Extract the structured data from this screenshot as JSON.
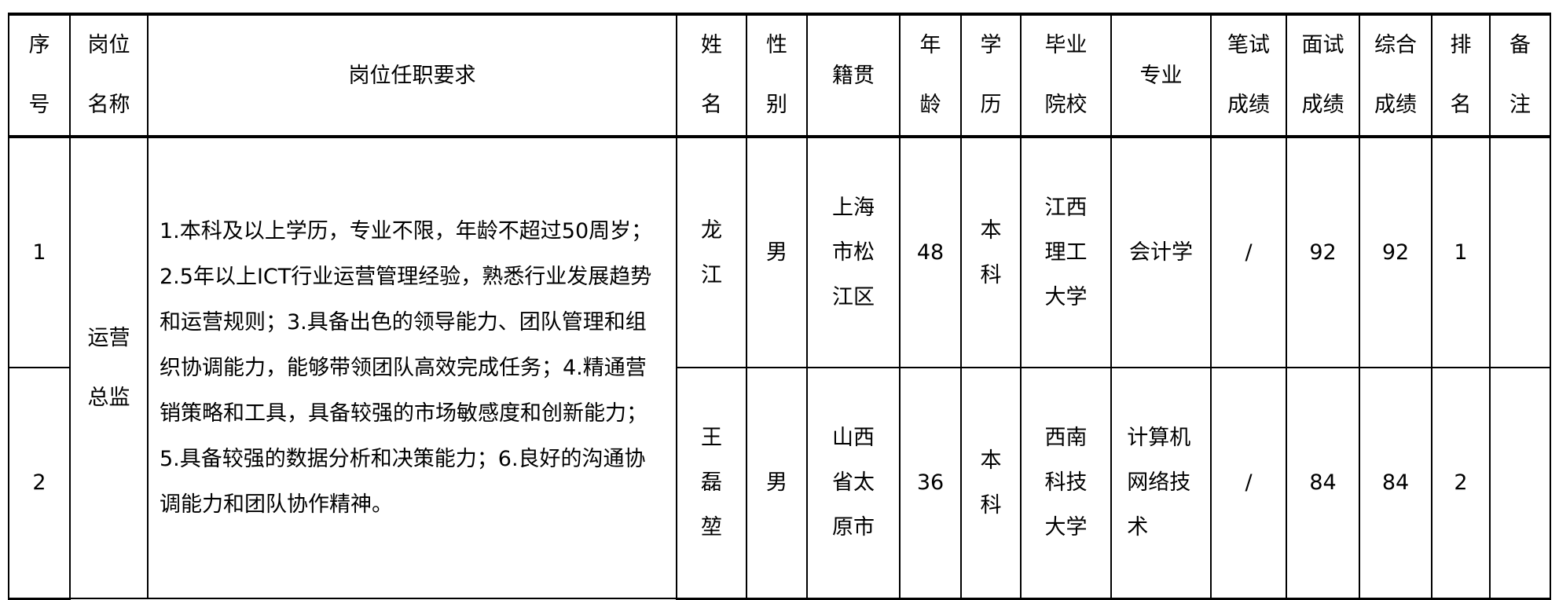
{
  "headers": [
    "序号",
    "岗位名称",
    "岗位任职要求",
    "姓名",
    "性别",
    "籍贯",
    "年龄",
    "学历",
    "毕业院校",
    "专业",
    "笔试成绩",
    "面试成绩",
    "综合成绩",
    "排名",
    "备注"
  ],
  "position": "运营总监",
  "requirements": "1.本科及以上学历，专业不限，年龄不超过50周岁；2.5年以上ICT行业运营管理经验，熟悉行业发展趋势和运营规则；3.具备出色的领导能力、团队管理和组织协调能力，能够带领团队高效完成任务；4.精通营销策略和工具，具备较强的市场敏感度和创新能力；5.具备较强的数据分析和决策能力；6.良好的沟通协调能力和团队协作精神。",
  "rows": [
    {
      "no": "1",
      "name": "龙江",
      "gender": "男",
      "origin": "上海市松江区",
      "age": "48",
      "education": "本科",
      "school": "江西理工大学",
      "major": "会计学",
      "written": "/",
      "interview": "92",
      "total": "92",
      "rank": "1",
      "note": ""
    },
    {
      "no": "2",
      "name": "王磊堃",
      "gender": "男",
      "origin": "山西省太原市",
      "age": "36",
      "education": "本科",
      "school": "西南科技大学",
      "major": "计算机网络技术",
      "written": "/",
      "interview": "84",
      "total": "84",
      "rank": "2",
      "note": ""
    }
  ]
}
